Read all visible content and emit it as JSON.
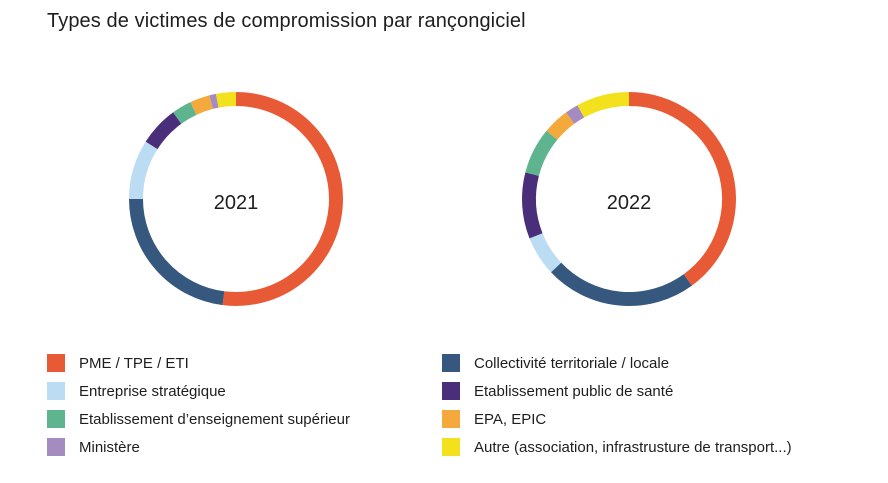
{
  "title": "Types de victimes de compromission par rançongiciel",
  "chart_data": {
    "type": "pie",
    "subtype": "donut",
    "title": "Types de victimes de compromission par rançongiciel",
    "categories": [
      "PME / TPE / ETI",
      "Collectivité territoriale / locale",
      "Entreprise stratégique",
      "Etablissement public de santé",
      "Etablissement d’enseignement supérieur",
      "EPA, EPIC",
      "Ministère",
      "Autre (association, infrastrusture de transport...)"
    ],
    "colors": [
      "#e85a35",
      "#36587f",
      "#bcdcf4",
      "#4a2e79",
      "#5db48f",
      "#f3a93b",
      "#a48bc0",
      "#f2e11c"
    ],
    "series": [
      {
        "name": "2021",
        "values": [
          52,
          23,
          9,
          6,
          3,
          3,
          1,
          3
        ]
      },
      {
        "name": "2022",
        "values": [
          40,
          23,
          6,
          10,
          7,
          4,
          2,
          8
        ]
      }
    ],
    "legend_position": "bottom"
  },
  "legend": {
    "left": [
      {
        "label": "PME / TPE / ETI",
        "color": "#e85a35"
      },
      {
        "label": "Entreprise stratégique",
        "color": "#bcdcf4"
      },
      {
        "label": "Etablissement d’enseignement supérieur",
        "color": "#5db48f"
      },
      {
        "label": "Ministère",
        "color": "#a48bc0"
      }
    ],
    "right": [
      {
        "label": "Collectivité territoriale / locale",
        "color": "#36587f"
      },
      {
        "label": "Etablissement public de santé",
        "color": "#4a2e79"
      },
      {
        "label": "EPA, EPIC",
        "color": "#f3a93b"
      },
      {
        "label": "Autre (association, infrastrusture de transport...)",
        "color": "#f2e11c"
      }
    ]
  }
}
